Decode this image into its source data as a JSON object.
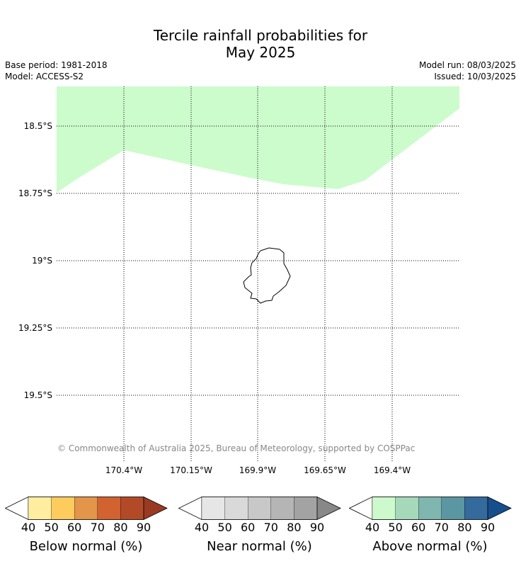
{
  "title_line1": "Tercile rainfall probabilities for",
  "title_line2": "May 2025",
  "base_period": "Base period: 1981-2018",
  "model": "Model: ACCESS-S2",
  "model_run": "Model run: 08/03/2025",
  "issued": "Issued: 10/03/2025",
  "credit": "© Commonwealth of Australia 2025, Bureau of Meteorology, supported by COSPPac",
  "lat_labels": [
    "18.5°S",
    "18.75°S",
    "19°S",
    "19.25°S",
    "19.5°S"
  ],
  "lon_labels": [
    "170.4°W",
    "170.15°W",
    "169.9°W",
    "169.65°W",
    "169.4°W"
  ],
  "legends": [
    {
      "name": "Below normal (%)",
      "ticks": [
        "40",
        "50",
        "60",
        "70",
        "80",
        "90"
      ],
      "colors": [
        "#ffeda0",
        "#fecc5c",
        "#e3954a",
        "#d2622f",
        "#b24a28",
        "#9a3a22"
      ]
    },
    {
      "name": "Near normal (%)",
      "ticks": [
        "40",
        "50",
        "60",
        "70",
        "80",
        "90"
      ],
      "colors": [
        "#e6e6e6",
        "#d9d9d9",
        "#c8c8c8",
        "#b5b5b5",
        "#a3a3a3",
        "#888888"
      ]
    },
    {
      "name": "Above normal (%)",
      "ticks": [
        "40",
        "50",
        "60",
        "70",
        "80",
        "90"
      ],
      "colors": [
        "#ccfacc",
        "#a6d9b9",
        "#7fb6b0",
        "#5b96a3",
        "#346a9c",
        "#174f8e"
      ]
    }
  ],
  "field_color": "#ccfccc",
  "field_category": "Above normal (%)"
}
